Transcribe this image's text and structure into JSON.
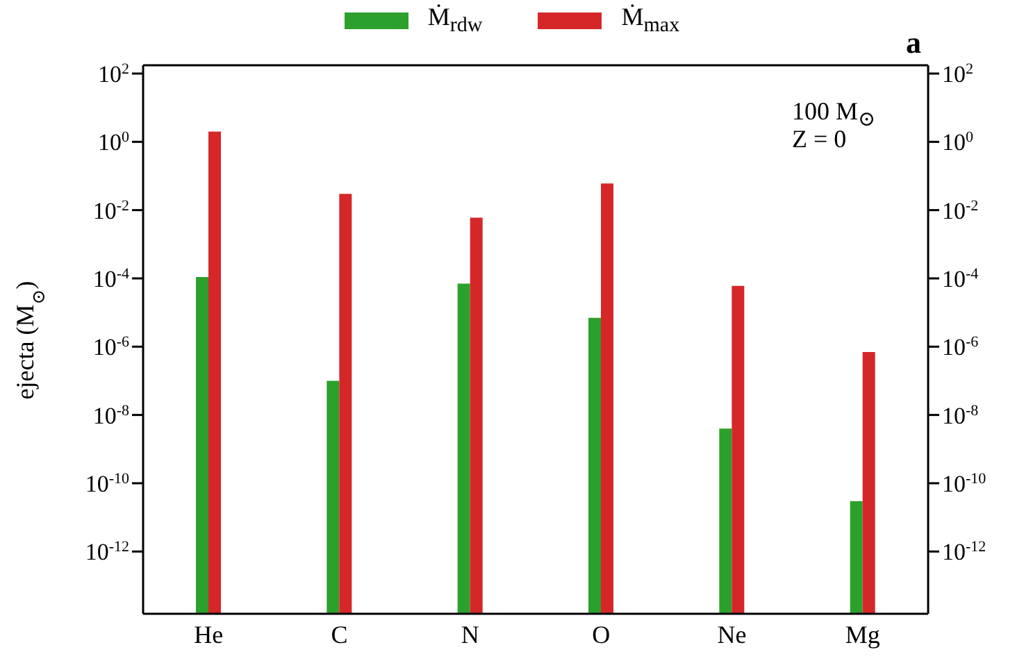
{
  "chart_data": {
    "type": "bar",
    "ylabel": "ejecta (M$_{⊙}$)",
    "log": true,
    "categories": [
      "He",
      "C",
      "N",
      "O",
      "Ne",
      "Mg"
    ],
    "series": [
      {
        "name": "Ṁ$_{rdw}$",
        "color": "#2ca02c",
        "values": [
          0.00011,
          1e-07,
          7e-05,
          7e-06,
          4e-09,
          3e-11
        ]
      },
      {
        "name": "Ṁ$_{max}$",
        "color": "#d62728",
        "values": [
          2,
          0.03,
          0.006,
          0.06,
          6e-05,
          7e-07
        ]
      }
    ],
    "ylim": [
      1.5e-14,
      175
    ],
    "yticks": [
      {
        "value": 100,
        "label": "10$^{2}$"
      },
      {
        "value": 1,
        "label": "10$^{0}$"
      },
      {
        "value": 0.01,
        "label": "10$^{-2}$"
      },
      {
        "value": 0.0001,
        "label": "10$^{-4}$"
      },
      {
        "value": 1e-06,
        "label": "10$^{-6}$"
      },
      {
        "value": 1e-08,
        "label": "10$^{-8}$"
      },
      {
        "value": 1e-10,
        "label": "10$^{-10}$"
      },
      {
        "value": 1e-12,
        "label": "10$^{-12}$"
      }
    ],
    "annotations": [
      "100 M$_{⊙}$",
      "Z = 0",
      "a"
    ],
    "legend": "top"
  }
}
